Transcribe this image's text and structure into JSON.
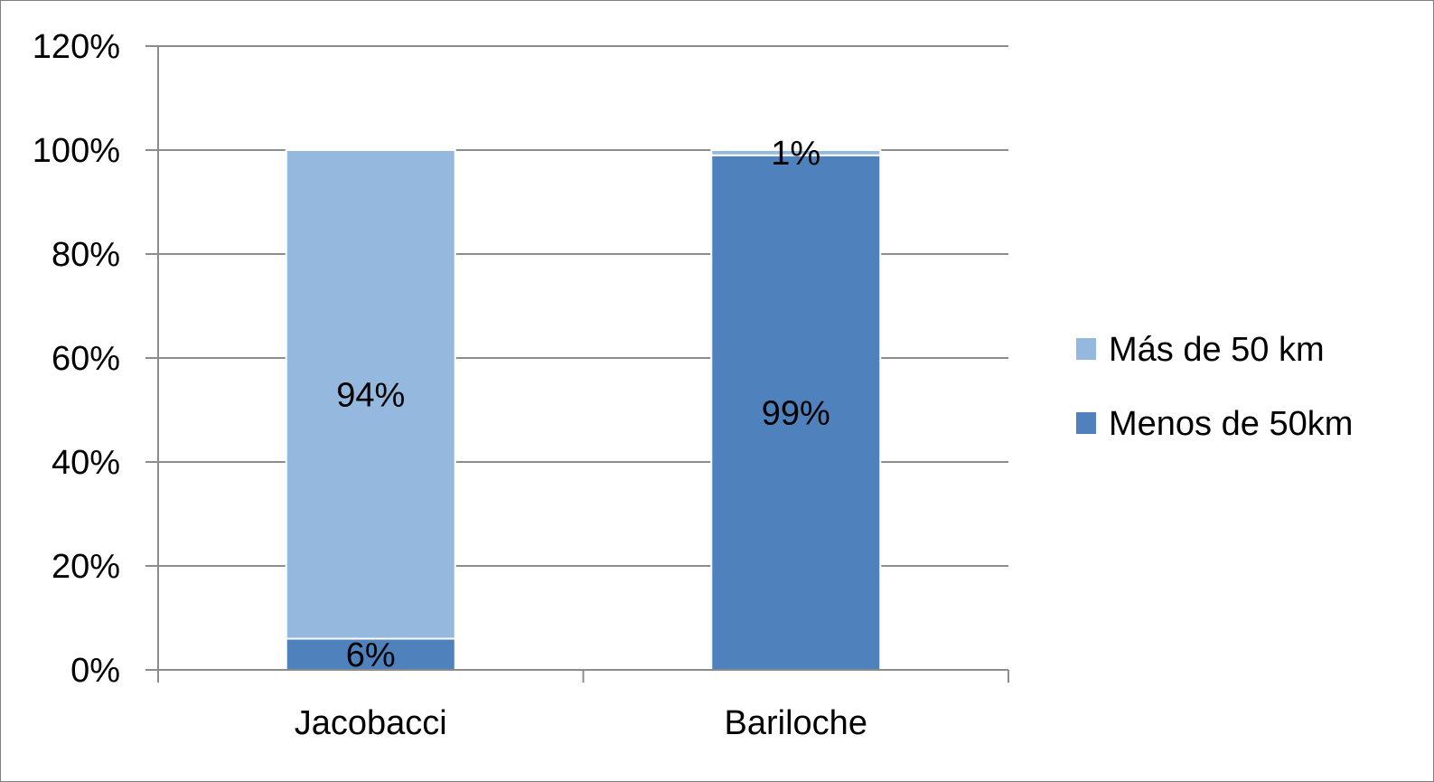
{
  "chart_data": {
    "type": "bar",
    "stacked": true,
    "categories": [
      "Jacobacci",
      "Bariloche"
    ],
    "series": [
      {
        "name": "Menos de 50km",
        "values": [
          6,
          99
        ],
        "labels": [
          "6%",
          "99%"
        ],
        "color": "#4f81bd"
      },
      {
        "name": "Más de 50 km",
        "values": [
          94,
          1
        ],
        "labels": [
          "94%",
          "1%"
        ],
        "color": "#95b8de"
      }
    ],
    "ylim": [
      0,
      120
    ],
    "yticks": [
      "0%",
      "20%",
      "40%",
      "60%",
      "80%",
      "100%",
      "120%"
    ],
    "grid": true,
    "legend_position": "right",
    "legend_order": [
      "Más de 50 km",
      "Menos de 50km"
    ],
    "gridline_color": "#8c8c8c"
  }
}
